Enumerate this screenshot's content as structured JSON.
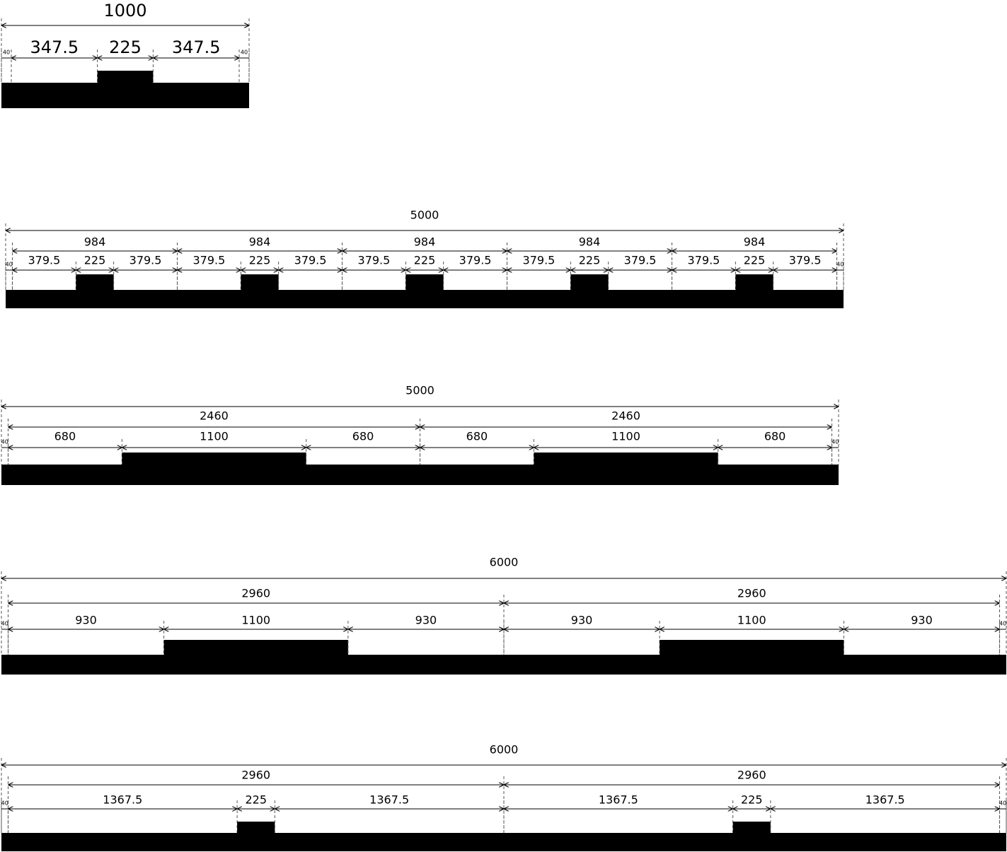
{
  "drawings": [
    {
      "total": 1000,
      "levels": [
        [
          40,
          347.5,
          225,
          347.5,
          40
        ]
      ]
    },
    {
      "total": 5000,
      "levels": [
        [
          984,
          984,
          984,
          984,
          984
        ],
        [
          40,
          379.5,
          225,
          379.5,
          379.5,
          225,
          379.5,
          379.5,
          225,
          379.5,
          379.5,
          225,
          379.5,
          379.5,
          225,
          379.5,
          40
        ]
      ]
    },
    {
      "total": 5000,
      "levels": [
        [
          2460,
          2460
        ],
        [
          40,
          680,
          1100,
          680,
          680,
          1100,
          680,
          40
        ]
      ]
    },
    {
      "total": 6000,
      "levels": [
        [
          2960,
          2960
        ],
        [
          40,
          930,
          1100,
          930,
          930,
          1100,
          930,
          40
        ]
      ]
    },
    {
      "total": 6000,
      "levels": [
        [
          2960,
          2960
        ],
        [
          40,
          1367.5,
          225,
          1367.5,
          1367.5,
          225,
          1367.5,
          40
        ]
      ]
    }
  ]
}
